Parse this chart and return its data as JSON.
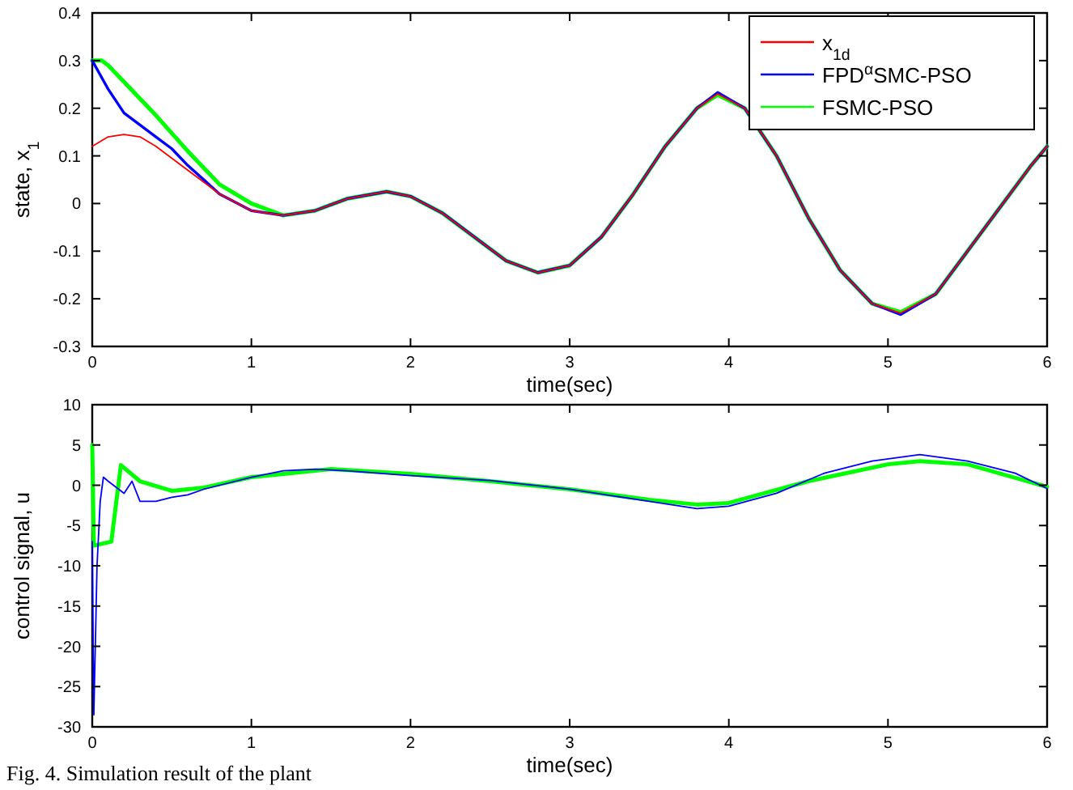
{
  "chart_data": [
    {
      "type": "line",
      "xlabel": "time(sec)",
      "ylabel": "state, x$_{1}$",
      "xlim": [
        0,
        6
      ],
      "ylim": [
        -0.3,
        0.4
      ],
      "xticks": [
        0,
        1,
        2,
        3,
        4,
        5,
        6
      ],
      "yticks": [
        -0.3,
        -0.2,
        -0.1,
        0,
        0.1,
        0.2,
        0.3,
        0.4
      ],
      "grid": false,
      "legend": "top right",
      "series": [
        {
          "name": "x$_{1d}$",
          "color": "#ff0000",
          "x": [
            0,
            0.1,
            0.2,
            0.3,
            0.4,
            0.6,
            0.8,
            1.0,
            1.2,
            1.4,
            1.6,
            1.85,
            2.0,
            2.2,
            2.4,
            2.6,
            2.8,
            3.0,
            3.2,
            3.4,
            3.6,
            3.8,
            3.93,
            4.1,
            4.3,
            4.5,
            4.7,
            4.9,
            5.08,
            5.3,
            5.5,
            5.7,
            5.9,
            6.0
          ],
          "values": [
            0.12,
            0.14,
            0.145,
            0.14,
            0.12,
            0.07,
            0.02,
            -0.015,
            -0.025,
            -0.015,
            0.01,
            0.025,
            0.015,
            -0.02,
            -0.07,
            -0.12,
            -0.145,
            -0.13,
            -0.07,
            0.02,
            0.12,
            0.2,
            0.23,
            0.2,
            0.1,
            -0.03,
            -0.14,
            -0.21,
            -0.23,
            -0.19,
            -0.1,
            -0.01,
            0.08,
            0.12
          ]
        },
        {
          "name": "FPD$^{α}$SMC-PSO",
          "color": "#0000ff",
          "x": [
            0,
            0.05,
            0.1,
            0.2,
            0.3,
            0.4,
            0.5,
            0.6,
            0.8,
            1.0,
            1.2,
            1.4,
            1.6,
            1.85,
            2.0,
            2.2,
            2.4,
            2.6,
            2.8,
            3.0,
            3.2,
            3.4,
            3.6,
            3.8,
            3.93,
            4.1,
            4.3,
            4.5,
            4.7,
            4.9,
            5.08,
            5.3,
            5.5,
            5.7,
            5.9,
            6.0
          ],
          "values": [
            0.3,
            0.27,
            0.24,
            0.19,
            0.165,
            0.14,
            0.115,
            0.08,
            0.02,
            -0.015,
            -0.025,
            -0.015,
            0.01,
            0.025,
            0.015,
            -0.02,
            -0.07,
            -0.12,
            -0.145,
            -0.13,
            -0.07,
            0.02,
            0.12,
            0.2,
            0.233,
            0.2,
            0.1,
            -0.03,
            -0.14,
            -0.21,
            -0.233,
            -0.19,
            -0.1,
            -0.01,
            0.08,
            0.12
          ]
        },
        {
          "name": "FSMC-PSO",
          "color": "#00ff00",
          "x": [
            0,
            0.06,
            0.1,
            0.2,
            0.4,
            0.6,
            0.8,
            1.0,
            1.2,
            1.4,
            1.6,
            1.85,
            2.0,
            2.2,
            2.4,
            2.6,
            2.8,
            3.0,
            3.2,
            3.4,
            3.6,
            3.8,
            3.93,
            4.1,
            4.3,
            4.5,
            4.7,
            4.9,
            5.08,
            5.3,
            5.5,
            5.7,
            5.9,
            6.0
          ],
          "values": [
            0.3,
            0.3,
            0.29,
            0.255,
            0.185,
            0.11,
            0.04,
            0.0,
            -0.025,
            -0.015,
            0.01,
            0.025,
            0.015,
            -0.02,
            -0.07,
            -0.12,
            -0.145,
            -0.13,
            -0.07,
            0.02,
            0.12,
            0.2,
            0.228,
            0.2,
            0.1,
            -0.03,
            -0.14,
            -0.21,
            -0.228,
            -0.19,
            -0.1,
            -0.01,
            0.08,
            0.12
          ]
        }
      ]
    },
    {
      "type": "line",
      "xlabel": "time(sec)",
      "ylabel": "control signal, u",
      "xlim": [
        0,
        6
      ],
      "ylim": [
        -30,
        10
      ],
      "xticks": [
        0,
        1,
        2,
        3,
        4,
        5,
        6
      ],
      "yticks": [
        -30,
        -25,
        -20,
        -15,
        -10,
        -5,
        0,
        5,
        10
      ],
      "grid": false,
      "legend": false,
      "annotations": [
        "Fig. 4. Simulation result of the plant"
      ],
      "series": [
        {
          "color": "#0000ff",
          "x": [
            0,
            0.01,
            0.03,
            0.05,
            0.07,
            0.1,
            0.2,
            0.25,
            0.3,
            0.4,
            0.5,
            0.6,
            0.7,
            0.8,
            1.0,
            1.2,
            1.4,
            1.6,
            1.8,
            2.0,
            2.5,
            3.0,
            3.5,
            3.8,
            4.0,
            4.3,
            4.6,
            4.9,
            5.2,
            5.5,
            5.8,
            6.0
          ],
          "values": [
            -7,
            -28.5,
            -10,
            -2,
            1,
            0.5,
            -1,
            0.5,
            -2,
            -2,
            -1.5,
            -1.2,
            -0.5,
            0,
            1,
            1.8,
            2,
            1.8,
            1.5,
            1.2,
            0.6,
            -0.5,
            -2,
            -2.9,
            -2.6,
            -1,
            1.5,
            3,
            3.8,
            3,
            1.5,
            -0.4
          ]
        },
        {
          "color": "#00ff00",
          "x": [
            0,
            0.01,
            0.12,
            0.18,
            0.3,
            0.5,
            0.7,
            1.0,
            1.5,
            2.0,
            2.5,
            3.0,
            3.5,
            3.8,
            4.0,
            4.5,
            5.0,
            5.2,
            5.5,
            6.0
          ],
          "values": [
            5,
            -7.5,
            -7,
            2.5,
            0.5,
            -0.7,
            -0.3,
            1,
            2,
            1.4,
            0.5,
            -0.5,
            -1.8,
            -2.4,
            -2.2,
            0.5,
            2.6,
            3,
            2.6,
            -0.2
          ]
        }
      ]
    }
  ]
}
